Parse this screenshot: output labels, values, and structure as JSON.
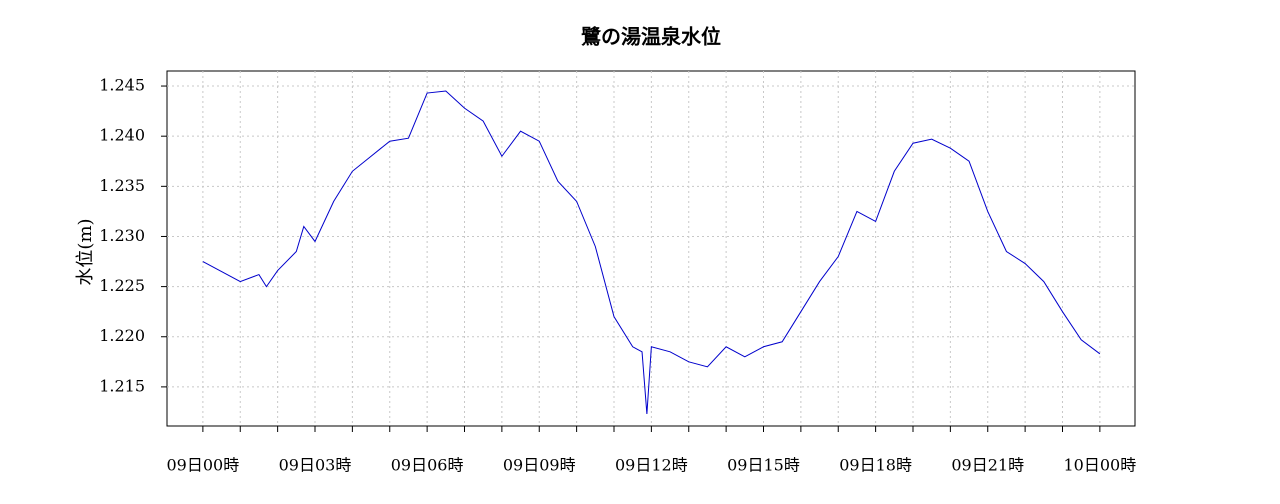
{
  "chart_data": {
    "type": "line",
    "title": "鷺の湯温泉水位",
    "y_label": "水位(m)",
    "x": [
      0,
      0.5,
      1,
      1.5,
      1.7,
      2,
      2.5,
      2.7,
      3,
      3.5,
      4,
      4.5,
      5,
      5.5,
      6,
      6.5,
      7,
      7.5,
      8,
      8.5,
      9,
      9.5,
      10,
      10.5,
      11,
      11.5,
      11.75,
      11.88,
      12,
      12.5,
      13,
      13.5,
      14,
      14.5,
      15,
      15.5,
      16,
      16.5,
      17,
      17.5,
      18,
      18.5,
      19,
      19.5,
      20,
      20.5,
      21,
      21.5,
      22,
      22.5,
      23,
      23.5,
      24
    ],
    "series": [
      {
        "name": "水位",
        "color": "#0000cc",
        "values": [
          1.2275,
          1.2265,
          1.2255,
          1.2262,
          1.225,
          1.2266,
          1.2285,
          1.231,
          1.2295,
          1.2335,
          1.2365,
          1.238,
          1.2395,
          1.2398,
          1.2443,
          1.2445,
          1.2428,
          1.2415,
          1.238,
          1.2405,
          1.2395,
          1.2355,
          1.2335,
          1.229,
          1.222,
          1.219,
          1.2185,
          1.2123,
          1.219,
          1.2185,
          1.2175,
          1.217,
          1.219,
          1.218,
          1.219,
          1.2195,
          1.2225,
          1.2255,
          1.228,
          1.2325,
          1.2315,
          1.2365,
          1.2393,
          1.2397,
          1.2388,
          1.2375,
          1.2325,
          1.2285,
          1.2273,
          1.2255,
          1.2225,
          1.2197,
          1.2183
        ]
      }
    ],
    "xlim": [
      -0.96,
      24.94
    ],
    "xticks": [
      {
        "value": 0,
        "label": "09日00時"
      },
      {
        "value": 3,
        "label": "09日03時"
      },
      {
        "value": 6,
        "label": "09日06時"
      },
      {
        "value": 9,
        "label": "09日09時"
      },
      {
        "value": 12,
        "label": "09日12時"
      },
      {
        "value": 15,
        "label": "09日15時"
      },
      {
        "value": 18,
        "label": "09日18時"
      },
      {
        "value": 21,
        "label": "09日21時"
      },
      {
        "value": 24,
        "label": "10日00時"
      }
    ],
    "xminorticks": [
      1,
      2,
      4,
      5,
      7,
      8,
      10,
      11,
      13,
      14,
      16,
      17,
      19,
      20,
      22,
      23
    ],
    "ylim": [
      1.2111,
      1.2465
    ],
    "yticks": [
      1.215,
      {
        "value": 1.22,
        "label": "1.220"
      },
      1.225,
      {
        "value": 1.23,
        "label": "1.230"
      },
      1.235,
      {
        "value": 1.24,
        "label": "1.240"
      },
      1.245
    ],
    "grid": true
  }
}
